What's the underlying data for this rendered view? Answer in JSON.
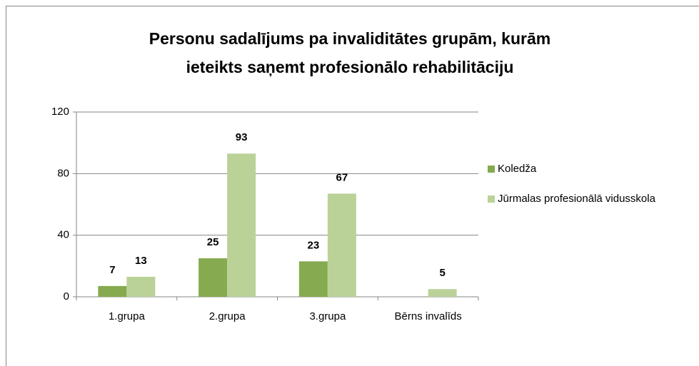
{
  "chart_data": {
    "type": "bar",
    "title": [
      "Personu sadalījums pa invaliditātes grupām, kurām",
      "ieteikts saņemt profesionālo rehabilitāciju"
    ],
    "categories": [
      "1.grupa",
      "2.grupa",
      "3.grupa",
      "Bērns invalīds"
    ],
    "series": [
      {
        "name": "Koledža",
        "color": "#86aa4f",
        "values": [
          7,
          25,
          23,
          null
        ]
      },
      {
        "name": "Jūrmalas profesionālā vidusskola",
        "color": "#bad298",
        "values": [
          13,
          93,
          67,
          5
        ]
      }
    ],
    "ylim": [
      0,
      120
    ],
    "yticks": [
      0,
      40,
      80,
      120
    ],
    "grid": true,
    "legend": "right"
  }
}
